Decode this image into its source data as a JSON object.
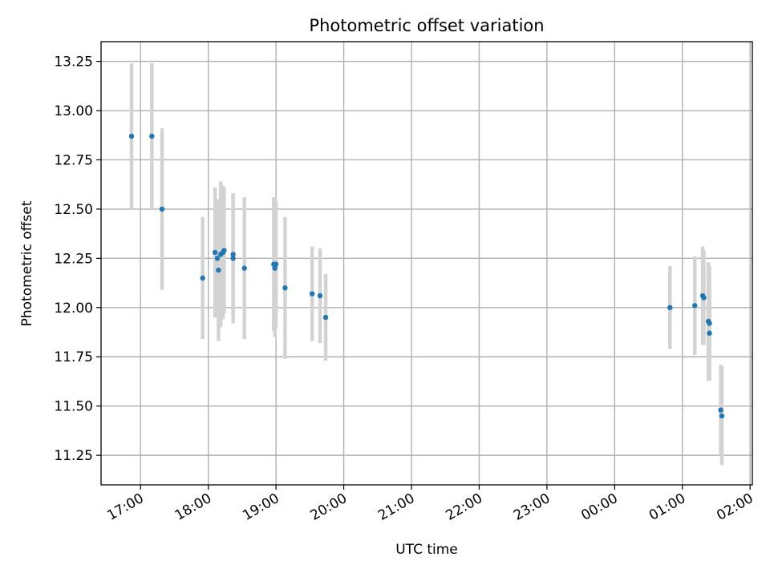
{
  "chart_data": {
    "type": "scatter",
    "title": "Photometric offset variation",
    "xlabel": "UTC time",
    "ylabel": "Photometric offset",
    "x_axis_type": "time",
    "x_tick_labels": [
      "17:00",
      "18:00",
      "19:00",
      "20:00",
      "21:00",
      "22:00",
      "23:00",
      "00:00",
      "01:00",
      "02:00"
    ],
    "xlim": [
      "16:25",
      "02:02"
    ],
    "x_ticks": [
      {
        "t": "17:00",
        "label": "17:00"
      },
      {
        "t": "18:00",
        "label": "18:00"
      },
      {
        "t": "19:00",
        "label": "19:00"
      },
      {
        "t": "20:00",
        "label": "20:00"
      },
      {
        "t": "21:00",
        "label": "21:00"
      },
      {
        "t": "22:00",
        "label": "22:00"
      },
      {
        "t": "23:00",
        "label": "23:00"
      },
      {
        "t": "00:00",
        "label": "00:00"
      },
      {
        "t": "01:00",
        "label": "01:00"
      },
      {
        "t": "02:00",
        "label": "02:00"
      }
    ],
    "ylim": [
      11.1,
      13.35
    ],
    "y_ticks": [
      "11.25",
      "11.50",
      "11.75",
      "12.00",
      "12.25",
      "12.50",
      "12.75",
      "13.00",
      "13.25"
    ],
    "grid": true,
    "marker_color": "#1f77b4",
    "errorbar_color": "#d3d3d3",
    "points": [
      {
        "x": "16:52",
        "y": 12.87,
        "yerr": 0.37
      },
      {
        "x": "17:10",
        "y": 12.87,
        "yerr": 0.37
      },
      {
        "x": "17:19",
        "y": 12.5,
        "yerr": 0.41
      },
      {
        "x": "17:55",
        "y": 12.15,
        "yerr": 0.31
      },
      {
        "x": "18:06",
        "y": 12.28,
        "yerr": 0.33
      },
      {
        "x": "18:08",
        "y": 12.25,
        "yerr": 0.3
      },
      {
        "x": "18:09",
        "y": 12.19,
        "yerr": 0.36
      },
      {
        "x": "18:11",
        "y": 12.27,
        "yerr": 0.37
      },
      {
        "x": "18:13",
        "y": 12.28,
        "yerr": 0.34
      },
      {
        "x": "18:14",
        "y": 12.29,
        "yerr": 0.32
      },
      {
        "x": "18:22",
        "y": 12.27,
        "yerr": 0.31
      },
      {
        "x": "18:22",
        "y": 12.25,
        "yerr": 0.33
      },
      {
        "x": "18:32",
        "y": 12.2,
        "yerr": 0.36
      },
      {
        "x": "18:58",
        "y": 12.22,
        "yerr": 0.34
      },
      {
        "x": "18:59",
        "y": 12.2,
        "yerr": 0.35
      },
      {
        "x": "19:00",
        "y": 12.22,
        "yerr": 0.32
      },
      {
        "x": "19:08",
        "y": 12.1,
        "yerr": 0.36
      },
      {
        "x": "19:32",
        "y": 12.07,
        "yerr": 0.24
      },
      {
        "x": "19:39",
        "y": 12.06,
        "yerr": 0.24
      },
      {
        "x": "19:44",
        "y": 11.95,
        "yerr": 0.22
      },
      {
        "x": "00:49",
        "y": 12.0,
        "yerr": 0.21
      },
      {
        "x": "01:11",
        "y": 12.01,
        "yerr": 0.25
      },
      {
        "x": "01:18",
        "y": 12.06,
        "yerr": 0.25
      },
      {
        "x": "01:19",
        "y": 12.05,
        "yerr": 0.24
      },
      {
        "x": "01:23",
        "y": 11.93,
        "yerr": 0.3
      },
      {
        "x": "01:24",
        "y": 11.92,
        "yerr": 0.29
      },
      {
        "x": "01:24",
        "y": 11.87,
        "yerr": 0.24
      },
      {
        "x": "01:34",
        "y": 11.48,
        "yerr": 0.23
      },
      {
        "x": "01:35",
        "y": 11.45,
        "yerr": 0.25
      }
    ]
  }
}
